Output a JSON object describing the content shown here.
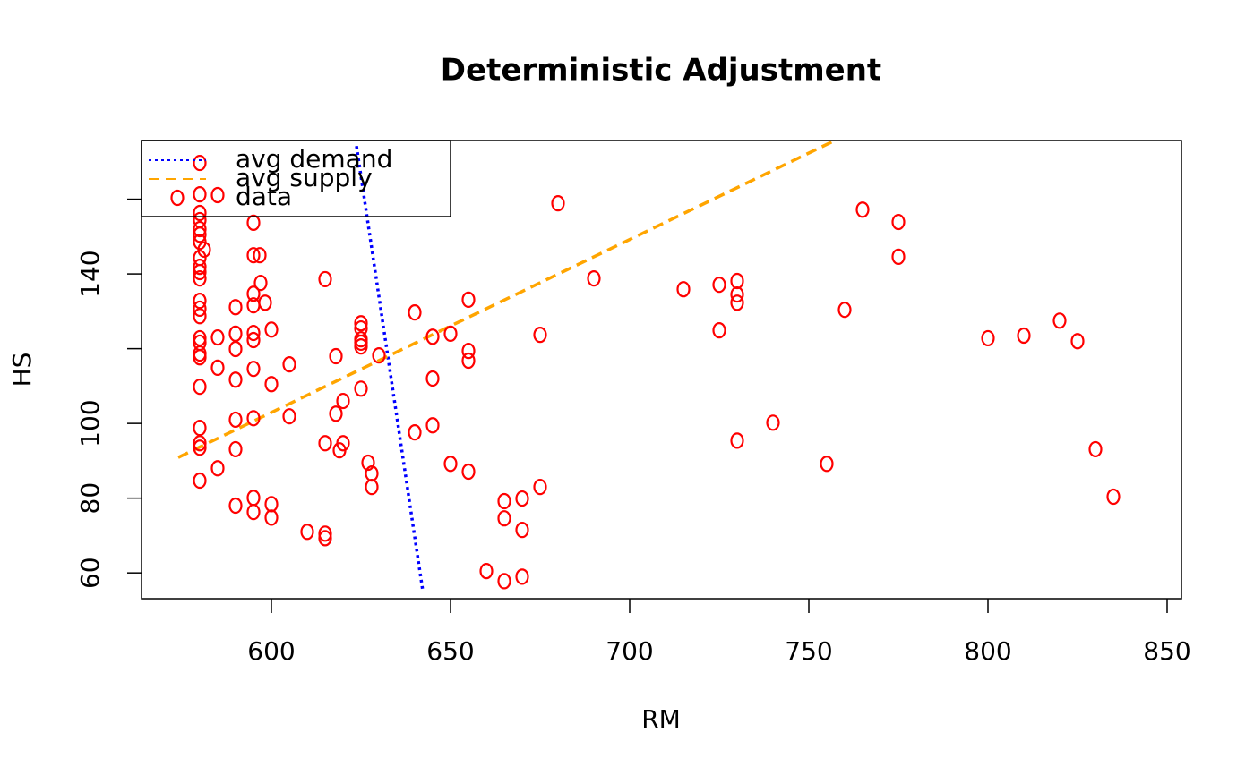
{
  "chart_data": {
    "type": "scatter",
    "title": "Deterministic Adjustment",
    "x_label": "RM",
    "y_label": "HS",
    "xlim": [
      563.75,
      854
    ],
    "ylim": [
      53.1,
      175.7
    ],
    "xticks": [
      600,
      650,
      700,
      750,
      800,
      850
    ],
    "yticks": [
      60,
      80,
      100,
      {
        "value": 120,
        "label": null
      },
      140,
      {
        "value": 160,
        "label": null
      }
    ],
    "legend": "top-left",
    "series": [
      {
        "name": "avg demand",
        "color": "#0000ff",
        "line": "dotted",
        "x": [
          623.75,
          642.25
        ],
        "values": [
          174.2,
          55.2
        ]
      },
      {
        "name": "avg supply",
        "color": "#ffa500",
        "line": "dashed",
        "x": [
          574,
          757.25
        ],
        "values": [
          90.9,
          175.7
        ]
      },
      {
        "name": "data",
        "color": "#ff0000",
        "line": "none",
        "x": [
          580,
          585,
          580,
          580,
          580,
          580,
          580,
          581.25,
          580,
          580,
          580,
          580,
          580,
          580,
          580,
          580,
          580,
          580,
          580,
          580,
          580,
          580,
          580,
          580,
          580,
          585,
          585,
          585,
          590,
          590,
          590,
          590,
          590,
          590,
          590,
          595,
          595,
          596.75,
          595,
          595,
          595,
          595,
          595,
          595,
          595,
          595,
          597,
          598.25,
          600,
          600,
          600,
          600,
          605,
          605,
          610,
          615,
          615,
          615,
          615,
          618,
          618,
          619,
          620,
          620,
          625,
          625,
          625,
          625,
          625,
          625,
          627,
          628,
          628,
          630,
          640,
          640,
          645,
          645,
          645,
          650,
          650,
          655,
          655,
          655,
          655,
          660,
          665,
          665,
          665,
          670,
          670,
          670,
          675,
          675,
          680,
          690,
          715,
          725,
          725,
          730,
          730,
          730,
          730,
          740,
          755,
          760,
          765,
          775,
          775,
          800,
          810,
          820,
          825,
          830,
          835
        ],
        "values": [
          169.7,
          161.1,
          161.3,
          156.3,
          154.4,
          152.0,
          150.5,
          146.5,
          148.6,
          144.3,
          141.9,
          140.5,
          138.8,
          132.8,
          130.7,
          128.7,
          122.8,
          121.6,
          118.7,
          117.7,
          109.8,
          98.8,
          94.7,
          93.5,
          84.7,
          123.0,
          114.9,
          88.0,
          131.1,
          124.0,
          119.9,
          111.7,
          101.0,
          93.1,
          78.0,
          153.7,
          145.0,
          145.0,
          134.7,
          131.6,
          124.2,
          122.3,
          114.6,
          101.4,
          80.1,
          76.3,
          137.6,
          132.3,
          125.1,
          110.5,
          78.4,
          74.8,
          115.8,
          101.9,
          71.0,
          138.6,
          94.7,
          70.5,
          69.3,
          118.0,
          102.6,
          92.8,
          106.0,
          94.7,
          126.8,
          125.4,
          122.5,
          121.6,
          120.6,
          109.3,
          89.5,
          86.6,
          83.0,
          118.2,
          129.7,
          97.6,
          123.2,
          112.0,
          99.5,
          124.0,
          89.2,
          133.1,
          119.4,
          116.8,
          87.1,
          60.5,
          79.2,
          74.6,
          57.8,
          79.9,
          71.5,
          59.0,
          123.7,
          83.0,
          158.9,
          138.8,
          135.9,
          137.1,
          124.9,
          138.1,
          134.5,
          132.3,
          95.4,
          100.2,
          89.2,
          130.4,
          157.2,
          153.9,
          144.6,
          122.8,
          123.5,
          127.5,
          122.0,
          93.1,
          80.4
        ]
      }
    ]
  }
}
